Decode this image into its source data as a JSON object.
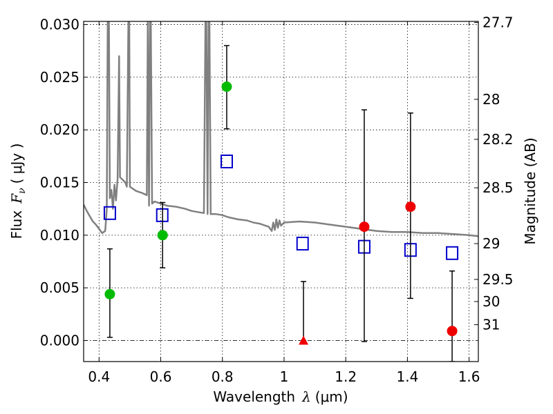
{
  "chart_data": {
    "type": "scatter",
    "xlabel_text": "Wavelength",
    "xlabel_symbol": "λ",
    "xlabel_unit": "(μm)",
    "ylabel_text": "Flux",
    "ylabel_symbol_main": "F",
    "ylabel_symbol_sub": "ν",
    "ylabel_unit": "( μJy )",
    "y2label": "Magnitude (AB)",
    "xlim": [
      0.35,
      1.63
    ],
    "ylim": [
      -0.002,
      0.0303
    ],
    "grid": true,
    "xticks": [
      {
        "value": 0.4,
        "label": "0.4"
      },
      {
        "value": 0.6,
        "label": "0.6"
      },
      {
        "value": 0.8,
        "label": "0.8"
      },
      {
        "value": 1.0,
        "label": "1"
      },
      {
        "value": 1.2,
        "label": "1.2"
      },
      {
        "value": 1.4,
        "label": "1.4"
      },
      {
        "value": 1.6,
        "label": "1.6"
      }
    ],
    "yticks": [
      {
        "value": 0.0,
        "label": "0.000"
      },
      {
        "value": 0.005,
        "label": "0.005"
      },
      {
        "value": 0.01,
        "label": "0.010"
      },
      {
        "value": 0.015,
        "label": "0.015"
      },
      {
        "value": 0.02,
        "label": "0.020"
      },
      {
        "value": 0.025,
        "label": "0.025"
      },
      {
        "value": 0.03,
        "label": "0.030"
      }
    ],
    "y2ticks": [
      {
        "flux": 0.0302,
        "label": "27.7"
      },
      {
        "flux": 0.0229,
        "label": "28"
      },
      {
        "flux": 0.0191,
        "label": "28.2"
      },
      {
        "flux": 0.0145,
        "label": "28.5"
      },
      {
        "flux": 0.0092,
        "label": "29"
      },
      {
        "flux": 0.0058,
        "label": "29.5"
      },
      {
        "flux": 0.0037,
        "label": "30"
      },
      {
        "flux": 0.0015,
        "label": "31"
      }
    ],
    "series": [
      {
        "kind": "model_spectrum",
        "color": "#808080",
        "points": [
          [
            0.35,
            0.0129
          ],
          [
            0.36,
            0.0123
          ],
          [
            0.37,
            0.0118
          ],
          [
            0.38,
            0.0113
          ],
          [
            0.39,
            0.011
          ],
          [
            0.4,
            0.0106
          ],
          [
            0.41,
            0.0102
          ],
          [
            0.42,
            0.0104
          ],
          [
            0.425,
            0.0125
          ],
          [
            0.428,
            0.0302
          ],
          [
            0.432,
            0.0302
          ],
          [
            0.435,
            0.0135
          ],
          [
            0.44,
            0.0143
          ],
          [
            0.445,
            0.0125
          ],
          [
            0.45,
            0.0148
          ],
          [
            0.455,
            0.0133
          ],
          [
            0.46,
            0.0153
          ],
          [
            0.465,
            0.027
          ],
          [
            0.468,
            0.0155
          ],
          [
            0.475,
            0.0153
          ],
          [
            0.485,
            0.015
          ],
          [
            0.49,
            0.0146
          ],
          [
            0.495,
            0.0302
          ],
          [
            0.498,
            0.0302
          ],
          [
            0.5,
            0.0146
          ],
          [
            0.52,
            0.0142
          ],
          [
            0.54,
            0.014
          ],
          [
            0.555,
            0.0138
          ],
          [
            0.558,
            0.0302
          ],
          [
            0.562,
            0.0128
          ],
          [
            0.565,
            0.0302
          ],
          [
            0.568,
            0.0302
          ],
          [
            0.572,
            0.013
          ],
          [
            0.58,
            0.0132
          ],
          [
            0.6,
            0.013
          ],
          [
            0.62,
            0.0128
          ],
          [
            0.65,
            0.0127
          ],
          [
            0.68,
            0.0125
          ],
          [
            0.7,
            0.0123
          ],
          [
            0.72,
            0.0122
          ],
          [
            0.74,
            0.0121
          ],
          [
            0.745,
            0.0302
          ],
          [
            0.748,
            0.0302
          ],
          [
            0.752,
            0.012
          ],
          [
            0.755,
            0.0302
          ],
          [
            0.758,
            0.0302
          ],
          [
            0.762,
            0.012
          ],
          [
            0.78,
            0.012
          ],
          [
            0.8,
            0.0119
          ],
          [
            0.82,
            0.0117
          ],
          [
            0.85,
            0.0115
          ],
          [
            0.88,
            0.0114
          ],
          [
            0.9,
            0.0112
          ],
          [
            0.92,
            0.0111
          ],
          [
            0.95,
            0.0108
          ],
          [
            0.96,
            0.0104
          ],
          [
            0.965,
            0.0112
          ],
          [
            0.97,
            0.0105
          ],
          [
            0.975,
            0.0115
          ],
          [
            0.98,
            0.0107
          ],
          [
            0.985,
            0.0114
          ],
          [
            0.99,
            0.0109
          ],
          [
            1.0,
            0.0112
          ],
          [
            1.05,
            0.0113
          ],
          [
            1.1,
            0.0112
          ],
          [
            1.15,
            0.011
          ],
          [
            1.2,
            0.0108
          ],
          [
            1.25,
            0.0106
          ],
          [
            1.3,
            0.0104
          ],
          [
            1.35,
            0.0103
          ],
          [
            1.4,
            0.0103
          ],
          [
            1.45,
            0.0102
          ],
          [
            1.5,
            0.0102
          ],
          [
            1.55,
            0.0101
          ],
          [
            1.6,
            0.01
          ],
          [
            1.63,
            0.0099
          ]
        ]
      },
      {
        "kind": "model_photometry",
        "marker": "open-square",
        "color": "#0000cc",
        "points": [
          [
            0.435,
            0.0121
          ],
          [
            0.605,
            0.0119
          ],
          [
            0.814,
            0.017
          ],
          [
            1.06,
            0.0092
          ],
          [
            1.26,
            0.0089
          ],
          [
            1.41,
            0.0086
          ],
          [
            1.545,
            0.0083
          ]
        ]
      },
      {
        "kind": "observed",
        "marker": "filled-circle",
        "color": "#00bb00",
        "points": [
          {
            "x": 0.435,
            "y": 0.0044,
            "err_lo": 0.0003,
            "err_hi": 0.0087
          },
          {
            "x": 0.606,
            "y": 0.01,
            "err_lo": 0.0069,
            "err_hi": 0.0131
          },
          {
            "x": 0.814,
            "y": 0.0241,
            "err_lo": 0.0201,
            "err_hi": 0.028
          }
        ]
      },
      {
        "kind": "observed",
        "marker": "filled-circle",
        "color": "#ee0000",
        "points": [
          {
            "x": 1.26,
            "y": 0.0108,
            "err_lo": -0.0001,
            "err_hi": 0.0219
          },
          {
            "x": 1.41,
            "y": 0.0127,
            "err_lo": 0.004,
            "err_hi": 0.0216
          },
          {
            "x": 1.545,
            "y": 0.0009,
            "err_lo": -0.002,
            "err_hi": 0.0066
          }
        ]
      },
      {
        "kind": "observed",
        "marker": "filled-triangle",
        "color": "#ee0000",
        "points": [
          {
            "x": 1.063,
            "y": 0.0,
            "err_lo": 0.0,
            "err_hi": 0.0056
          }
        ]
      }
    ]
  }
}
